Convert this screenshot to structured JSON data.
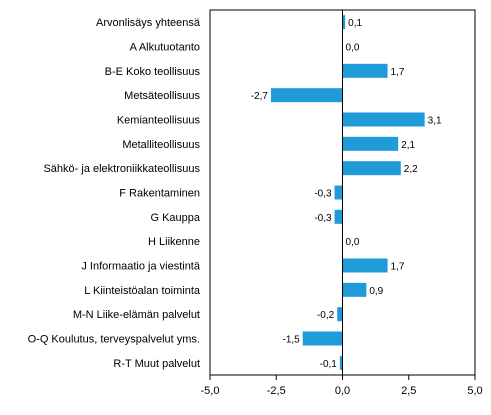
{
  "chart_data": {
    "type": "bar",
    "orientation": "horizontal",
    "categories": [
      "Arvonlisäys yhteensä",
      "A Alkutuotanto",
      "B-E Koko teollisuus",
      "Metsäteollisuus",
      "Kemianteollisuus",
      "Metalliteollisuus",
      "Sähkö- ja elektroniikkateollisuus",
      "F Rakentaminen",
      "G Kauppa",
      "H Liikenne",
      "J Informaatio ja viestintä",
      "L Kiinteistöalan toiminta",
      "M-N Liike-elämän palvelut",
      "O-Q Koulutus, terveyspalvelut yms.",
      "R-T Muut palvelut"
    ],
    "values": [
      0.1,
      0.0,
      1.7,
      -2.7,
      3.1,
      2.1,
      2.2,
      -0.3,
      -0.3,
      0.0,
      1.7,
      0.9,
      -0.2,
      -1.5,
      -0.1
    ],
    "value_labels": [
      "0,1",
      "0,0",
      "1,7",
      "-2,7",
      "3,1",
      "2,1",
      "2,2",
      "-0,3",
      "-0,3",
      "0,0",
      "1,7",
      "0,9",
      "-0,2",
      "-1,5",
      "-0,1"
    ],
    "xlim": [
      -5.0,
      5.0
    ],
    "xticks": [
      -5.0,
      -2.5,
      0.0,
      2.5,
      5.0
    ],
    "xtick_labels": [
      "-5,0",
      "-2,5",
      "0,0",
      "2,5",
      "5,0"
    ],
    "bar_color": "#1f9bd7",
    "grid": false,
    "legend": "none"
  }
}
